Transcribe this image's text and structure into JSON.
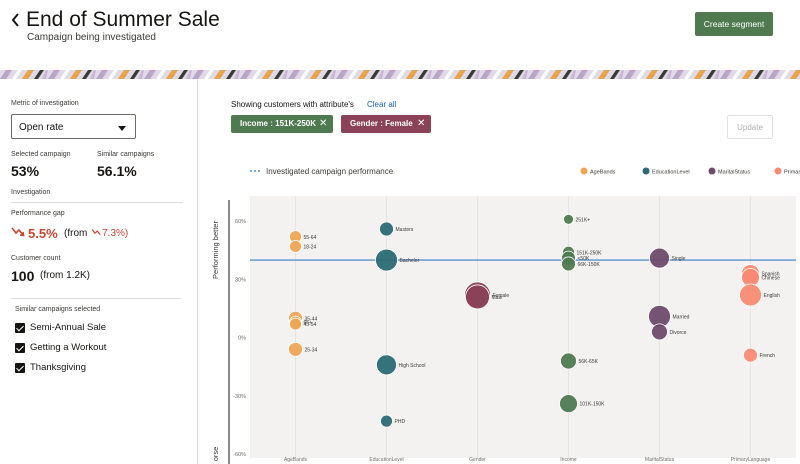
{
  "header": {
    "title": "End of Summer Sale",
    "subtitle": "Campaign being investigated",
    "create_button": "Create segment"
  },
  "left_panel": {
    "metric_label": "Metric of investigation",
    "metric_value": "Open rate",
    "selected_campaign_label": "Selected campaign",
    "selected_campaign_value": "53%",
    "similar_campaigns_label": "Similar campaigns",
    "similar_campaigns_value": "56.1%",
    "investigation_label": "Investigation",
    "performance_gap_label": "Performance gap",
    "performance_gap_value": "5.5%",
    "performance_gap_from_prefix": "(from",
    "performance_gap_from_value": "7.3%)",
    "customer_count_label": "Customer count",
    "customer_count_value": "100",
    "customer_count_from": "(from 1.2K)",
    "similar_selected_label": "Similar campaigns selected",
    "similar_campaigns": [
      "Semi-Annual Sale",
      "Getting a Workout",
      "Thanksgiving"
    ]
  },
  "filters": {
    "showing_label": "Showing customers with attribute's",
    "clear_label": "Clear all",
    "chips": [
      {
        "label": "Income : 151K-250K",
        "color": "#4f7a50"
      },
      {
        "label": "Gender : Female",
        "color": "#8b4157"
      }
    ],
    "update_label": "Update"
  },
  "chart_data": {
    "type": "scatter",
    "legend_line_label": "Investigated campaign performance",
    "reference_line": 40,
    "ylabel_top": "Performing better",
    "ylabel_bottom": "orse",
    "ylim": [
      -62,
      73
    ],
    "yticks": [
      60,
      30,
      0,
      -30,
      -60
    ],
    "ytick_labels": [
      "60%",
      "30%",
      "0%",
      "-30%",
      "-60%"
    ],
    "categories": [
      "AgeBands",
      "EducationLevel",
      "Gender",
      "Income",
      "MaritalStatus",
      "PrimaryLanguage"
    ],
    "legend": [
      {
        "name": "AgeBands",
        "color": "#eda554"
      },
      {
        "name": "EducationLevel",
        "color": "#2b6a73"
      },
      {
        "name": "MaritalStatus",
        "color": "#6e4a6b"
      },
      {
        "name": "PrimaryLanguage",
        "color": "#f88a73"
      }
    ],
    "series": [
      {
        "category": "AgeBands",
        "color": "#eda554",
        "points": [
          {
            "label": "55-64",
            "y": 52,
            "r": 6
          },
          {
            "label": "18-24",
            "y": 47,
            "r": 6
          },
          {
            "label": "35-44",
            "y": 10,
            "r": 7
          },
          {
            "label": "65+",
            "y": 8,
            "r": 6
          },
          {
            "label": "45-54",
            "y": 7,
            "r": 6
          },
          {
            "label": "25-34",
            "y": -6,
            "r": 7
          }
        ]
      },
      {
        "category": "EducationLevel",
        "color": "#2b6a73",
        "points": [
          {
            "label": "Masters",
            "y": 56,
            "r": 7
          },
          {
            "label": "Bachelor",
            "y": 40,
            "r": 11
          },
          {
            "label": "High School",
            "y": -14,
            "r": 10
          },
          {
            "label": "PHD",
            "y": -43,
            "r": 6
          }
        ]
      },
      {
        "category": "Gender",
        "color": "#8b4157",
        "points": [
          {
            "label": "Female",
            "y": 22,
            "r": 13
          },
          {
            "label": "Male",
            "y": 21,
            "r": 12
          }
        ]
      },
      {
        "category": "Income",
        "color": "#4f7a50",
        "points": [
          {
            "label": "251K+",
            "y": 61,
            "r": 5
          },
          {
            "label": "151K-250K",
            "y": 44,
            "r": 6
          },
          {
            "label": "<50K",
            "y": 41,
            "r": 7
          },
          {
            "label": "66K-150K",
            "y": 38,
            "r": 7
          },
          {
            "label": "56K-65K",
            "y": -12,
            "r": 8
          },
          {
            "label": "101K-150K",
            "y": -34,
            "r": 9
          }
        ]
      },
      {
        "category": "MaritalStatus",
        "color": "#6e4a6b",
        "points": [
          {
            "label": "Single",
            "y": 41,
            "r": 10
          },
          {
            "label": "Married",
            "y": 11,
            "r": 11
          },
          {
            "label": "Divorce",
            "y": 3,
            "r": 8
          }
        ]
      },
      {
        "category": "PrimaryLanguage",
        "color": "#f88a73",
        "points": [
          {
            "label": "Spanish",
            "y": 33,
            "r": 9
          },
          {
            "label": "Chinese",
            "y": 31,
            "r": 9
          },
          {
            "label": "English",
            "y": 22,
            "r": 11
          },
          {
            "label": "French",
            "y": -9,
            "r": 7
          }
        ]
      }
    ]
  }
}
